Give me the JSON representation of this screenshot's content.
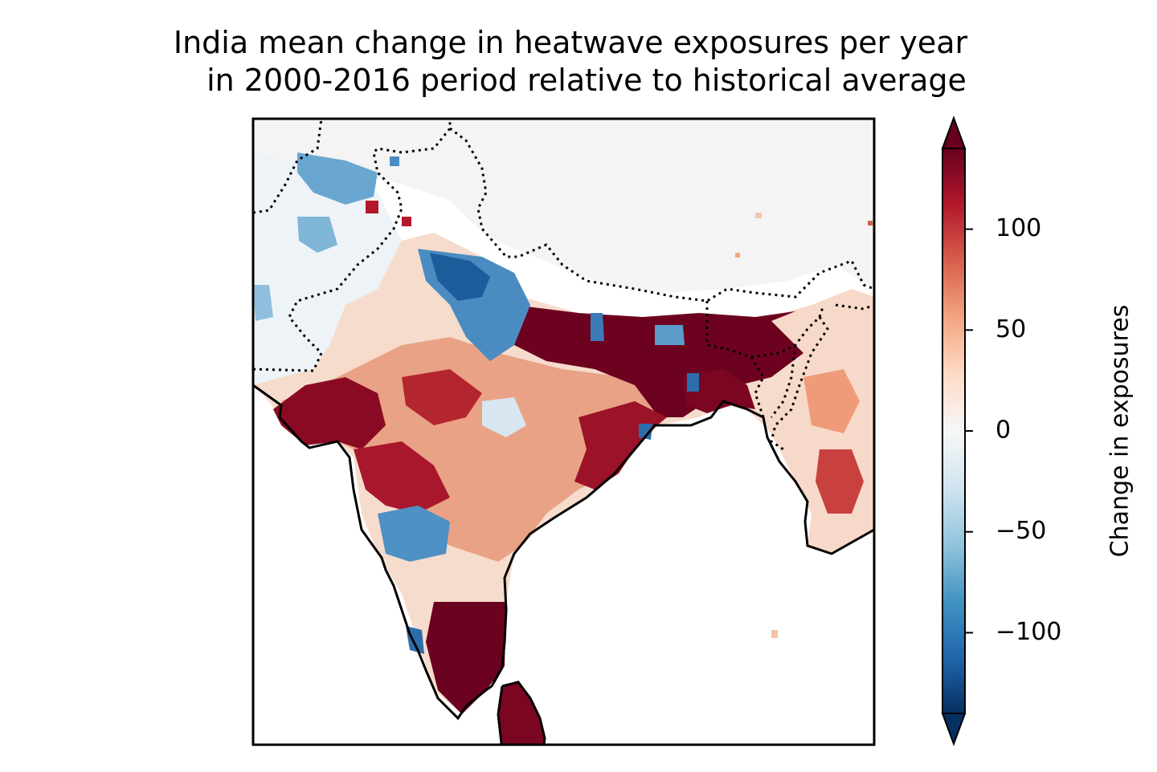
{
  "title": {
    "line1": "India mean change in heatwave exposures per year",
    "line2": "in 2000-2016 period relative to historical average"
  },
  "colorbar": {
    "label": "Change in exposures",
    "min": -140,
    "max": 140,
    "extend": "both",
    "colormap": "RdBu_r",
    "ticks": [
      {
        "value": 100,
        "label": "100"
      },
      {
        "value": 50,
        "label": "50"
      },
      {
        "value": 0,
        "label": "0"
      },
      {
        "value": -50,
        "label": "−50"
      },
      {
        "value": -100,
        "label": "−100"
      }
    ],
    "stops": [
      "#053061",
      "#2166ac",
      "#4393c3",
      "#92c5de",
      "#d1e5f0",
      "#f7f7f7",
      "#fddbc7",
      "#f4a582",
      "#d6604d",
      "#b2182b",
      "#67001f"
    ]
  },
  "map": {
    "region": "India",
    "projection": "PlateCarree"
  }
}
